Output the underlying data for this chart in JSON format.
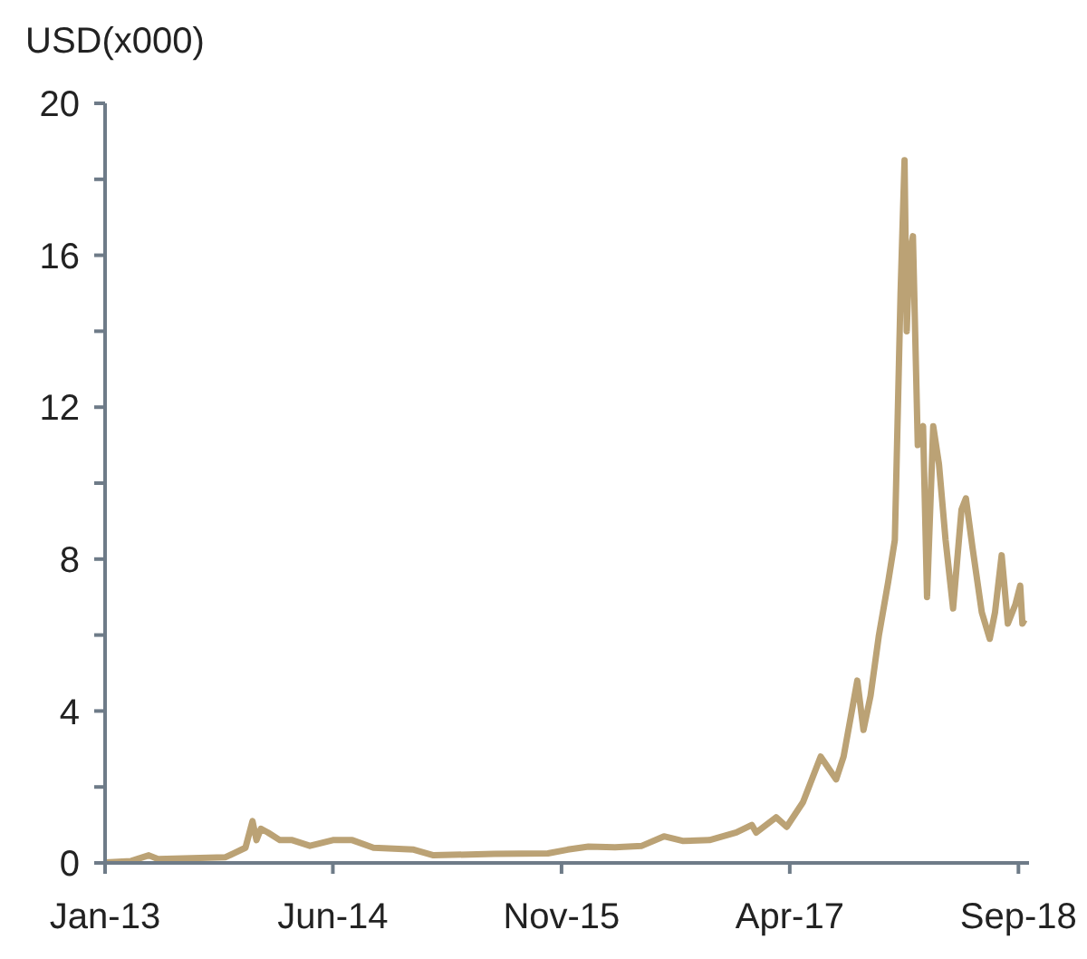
{
  "chart_data": {
    "type": "line",
    "ylabel": "USD(x000)",
    "x": [
      "2013-01-01",
      "2013-03-01",
      "2013-04-10",
      "2013-05-01",
      "2013-10-01",
      "2013-11-15",
      "2013-12-01",
      "2013-12-10",
      "2013-12-20",
      "2014-01-05",
      "2014-02-01",
      "2014-03-01",
      "2014-04-10",
      "2014-06-01",
      "2014-07-15",
      "2014-09-01",
      "2014-12-01",
      "2015-01-15",
      "2015-06-01",
      "2015-10-01",
      "2015-11-15",
      "2016-01-01",
      "2016-03-01",
      "2016-05-01",
      "2016-06-20",
      "2016-08-01",
      "2016-10-01",
      "2016-12-01",
      "2017-01-05",
      "2017-01-15",
      "2017-03-01",
      "2017-03-25",
      "2017-05-01",
      "2017-06-10",
      "2017-07-15",
      "2017-08-01",
      "2017-09-01",
      "2017-09-15",
      "2017-10-01",
      "2017-10-20",
      "2017-11-10",
      "2017-11-25",
      "2017-12-08",
      "2017-12-17",
      "2017-12-22",
      "2017-12-28",
      "2018-01-05",
      "2018-01-16",
      "2018-01-28",
      "2018-02-06",
      "2018-02-20",
      "2018-03-05",
      "2018-03-20",
      "2018-04-06",
      "2018-04-25",
      "2018-05-05",
      "2018-05-20",
      "2018-06-10",
      "2018-06-28",
      "2018-07-10",
      "2018-07-25",
      "2018-08-08",
      "2018-08-25",
      "2018-09-05",
      "2018-09-10",
      "2018-09-15"
    ],
    "series": [
      {
        "color": "#bba275",
        "values": [
          0.01,
          0.05,
          0.2,
          0.1,
          0.15,
          0.4,
          1.1,
          0.6,
          0.9,
          0.8,
          0.6,
          0.6,
          0.45,
          0.6,
          0.6,
          0.4,
          0.35,
          0.2,
          0.24,
          0.25,
          0.35,
          0.43,
          0.41,
          0.45,
          0.7,
          0.58,
          0.6,
          0.8,
          1.0,
          0.8,
          1.2,
          0.95,
          1.6,
          2.8,
          2.2,
          2.8,
          4.8,
          3.5,
          4.4,
          6.0,
          7.4,
          8.5,
          15.0,
          18.5,
          14.0,
          16.0,
          16.5,
          11.0,
          11.5,
          7.0,
          11.5,
          10.5,
          8.5,
          6.7,
          9.3,
          9.6,
          8.3,
          6.6,
          5.9,
          6.6,
          8.1,
          6.3,
          6.8,
          7.3,
          6.3,
          6.4
        ]
      }
    ],
    "xlim": [
      "2013-01-01",
      "2018-09-25"
    ],
    "xticks": [
      {
        "value": "2013-01-01",
        "label": "Jan-13"
      },
      {
        "value": "2014-06-01",
        "label": "Jun-14"
      },
      {
        "value": "2015-11-01",
        "label": "Nov-15"
      },
      {
        "value": "2017-04-01",
        "label": "Apr-17"
      },
      {
        "value": "2018-09-01",
        "label": "Sep-18"
      }
    ],
    "ylim": [
      0,
      20
    ],
    "yticks": [
      0,
      {
        "value": 2,
        "label": null
      },
      4,
      {
        "value": 6,
        "label": null
      },
      8,
      {
        "value": 10,
        "label": null
      },
      12,
      {
        "value": 14,
        "label": null
      },
      16,
      {
        "value": 18,
        "label": null
      },
      20
    ],
    "grid": false,
    "legend": false,
    "marker": "none",
    "line_style": "solid"
  }
}
